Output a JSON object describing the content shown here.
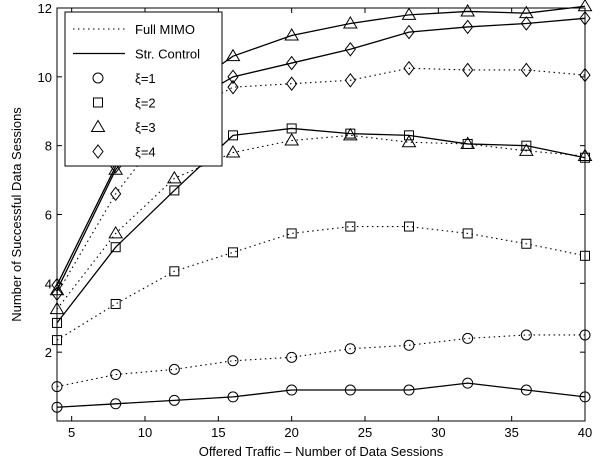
{
  "chart_data": {
    "type": "line",
    "xlabel": "Offered Traffic – Number of Data Sessions",
    "ylabel": "Number of Successful Data Sessions",
    "xlim": [
      4,
      40
    ],
    "ylim": [
      0,
      12
    ],
    "xticks": [
      5,
      10,
      15,
      20,
      25,
      30,
      35,
      40
    ],
    "yticks": [
      2,
      4,
      6,
      8,
      10,
      12
    ],
    "grid": false,
    "legend_position": "top-left",
    "legend": [
      {
        "label": "Full MIMO",
        "line": "dotted",
        "marker": "none"
      },
      {
        "label": "Str. Control",
        "line": "solid",
        "marker": "none"
      },
      {
        "label": "ξ=1",
        "line": "none",
        "marker": "circle"
      },
      {
        "label": "ξ=2",
        "line": "none",
        "marker": "square"
      },
      {
        "label": "ξ=3",
        "line": "none",
        "marker": "triangle"
      },
      {
        "label": "ξ=4",
        "line": "none",
        "marker": "diamond"
      }
    ],
    "x": [
      4,
      8,
      12,
      16,
      20,
      24,
      28,
      32,
      36,
      40
    ],
    "series": [
      {
        "strategy": "Full MIMO",
        "xi": "ξ=1",
        "line": "dotted",
        "marker": "circle",
        "values": [
          1.0,
          1.35,
          1.5,
          1.75,
          1.85,
          2.1,
          2.2,
          2.4,
          2.5,
          2.5
        ]
      },
      {
        "strategy": "Str. Control",
        "xi": "ξ=1",
        "line": "solid",
        "marker": "circle",
        "values": [
          0.4,
          0.5,
          0.6,
          0.7,
          0.9,
          0.9,
          0.9,
          1.1,
          0.9,
          0.7
        ]
      },
      {
        "strategy": "Full MIMO",
        "xi": "ξ=2",
        "line": "dotted",
        "marker": "square",
        "values": [
          2.35,
          3.4,
          4.35,
          4.9,
          5.45,
          5.65,
          5.65,
          5.45,
          5.15,
          4.8
        ]
      },
      {
        "strategy": "Str. Control",
        "xi": "ξ=2",
        "line": "solid",
        "marker": "square",
        "values": [
          2.85,
          5.05,
          6.7,
          8.3,
          8.5,
          8.35,
          8.3,
          8.05,
          8.0,
          7.65
        ]
      },
      {
        "strategy": "Full MIMO",
        "xi": "ξ=3",
        "line": "dotted",
        "marker": "triangle",
        "values": [
          3.25,
          5.45,
          7.05,
          7.8,
          8.15,
          8.3,
          8.1,
          8.05,
          7.85,
          7.7
        ]
      },
      {
        "strategy": "Str. Control",
        "xi": "ξ=3",
        "line": "solid",
        "marker": "triangle",
        "values": [
          3.8,
          7.3,
          9.4,
          10.6,
          11.2,
          11.55,
          11.8,
          11.9,
          11.85,
          12.05
        ]
      },
      {
        "strategy": "Full MIMO",
        "xi": "ξ=4",
        "line": "dotted",
        "marker": "diamond",
        "values": [
          3.7,
          6.6,
          8.8,
          9.7,
          9.8,
          9.9,
          10.25,
          10.2,
          10.2,
          10.05
        ]
      },
      {
        "strategy": "Str. Control",
        "xi": "ξ=4",
        "line": "solid",
        "marker": "diamond",
        "values": [
          3.95,
          7.4,
          9.0,
          10.0,
          10.4,
          10.8,
          11.3,
          11.45,
          11.55,
          11.7
        ]
      }
    ]
  }
}
